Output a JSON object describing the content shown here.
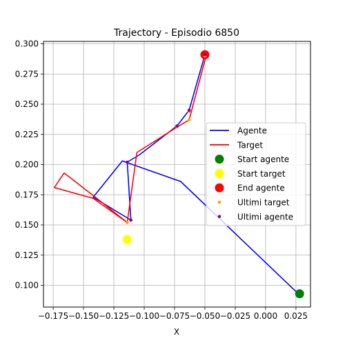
{
  "chart_data": {
    "type": "line",
    "title": "Trajectory - Episodio 6850",
    "xlabel": "X",
    "ylabel": "",
    "xlim": [
      -0.183,
      0.037
    ],
    "ylim": [
      0.082,
      0.302
    ],
    "grid": true,
    "legend_position": "center-right",
    "xticks": [
      -0.175,
      -0.15,
      -0.125,
      -0.1,
      -0.075,
      -0.05,
      -0.025,
      0.0,
      0.025
    ],
    "xtick_labels": [
      "−0.175",
      "−0.150",
      "−0.125",
      "−0.100",
      "−0.075",
      "−0.050",
      "−0.025",
      "0.000",
      "0.025"
    ],
    "yticks": [
      0.1,
      0.125,
      0.15,
      0.175,
      0.2,
      0.225,
      0.25,
      0.275,
      0.3
    ],
    "ytick_labels": [
      "0.100",
      "0.125",
      "0.150",
      "0.175",
      "0.200",
      "0.225",
      "0.250",
      "0.275",
      "0.300"
    ],
    "series": [
      {
        "name": "Agente",
        "kind": "line",
        "color": "#0000ff",
        "x": [
          0.027,
          -0.07,
          -0.118,
          -0.142,
          -0.111,
          -0.114,
          -0.104,
          -0.073,
          -0.063,
          -0.05
        ],
        "y": [
          0.093,
          0.186,
          0.203,
          0.173,
          0.154,
          0.202,
          0.208,
          0.232,
          0.245,
          0.291
        ]
      },
      {
        "name": "Target",
        "kind": "line",
        "color": "#ff0000",
        "x": [
          -0.114,
          -0.142,
          -0.174,
          -0.166,
          -0.139,
          -0.114,
          -0.11,
          -0.106,
          -0.073,
          -0.063,
          -0.049
        ],
        "y": [
          0.152,
          0.172,
          0.181,
          0.193,
          0.172,
          0.152,
          0.181,
          0.21,
          0.231,
          0.237,
          0.29
        ]
      },
      {
        "name": "Start agente",
        "kind": "marker",
        "color": "#008000",
        "x": [
          0.028
        ],
        "y": [
          0.093
        ]
      },
      {
        "name": "Start target",
        "kind": "marker",
        "color": "#ffff00",
        "x": [
          -0.114
        ],
        "y": [
          0.138
        ]
      },
      {
        "name": "End agente",
        "kind": "marker",
        "color": "#ff0000",
        "x": [
          -0.05
        ],
        "y": [
          0.291
        ]
      },
      {
        "name": "Ultimi target",
        "kind": "points",
        "color": "#ffa500",
        "x": [
          -0.114,
          -0.073,
          -0.063,
          -0.063,
          -0.05
        ],
        "y": [
          0.152,
          0.231,
          0.237,
          0.244,
          0.29
        ]
      },
      {
        "name": "Ultimi agente",
        "kind": "points",
        "color": "#800080",
        "x": [
          -0.111,
          -0.114,
          -0.073,
          -0.063,
          -0.05
        ],
        "y": [
          0.154,
          0.202,
          0.232,
          0.245,
          0.291
        ]
      }
    ]
  }
}
